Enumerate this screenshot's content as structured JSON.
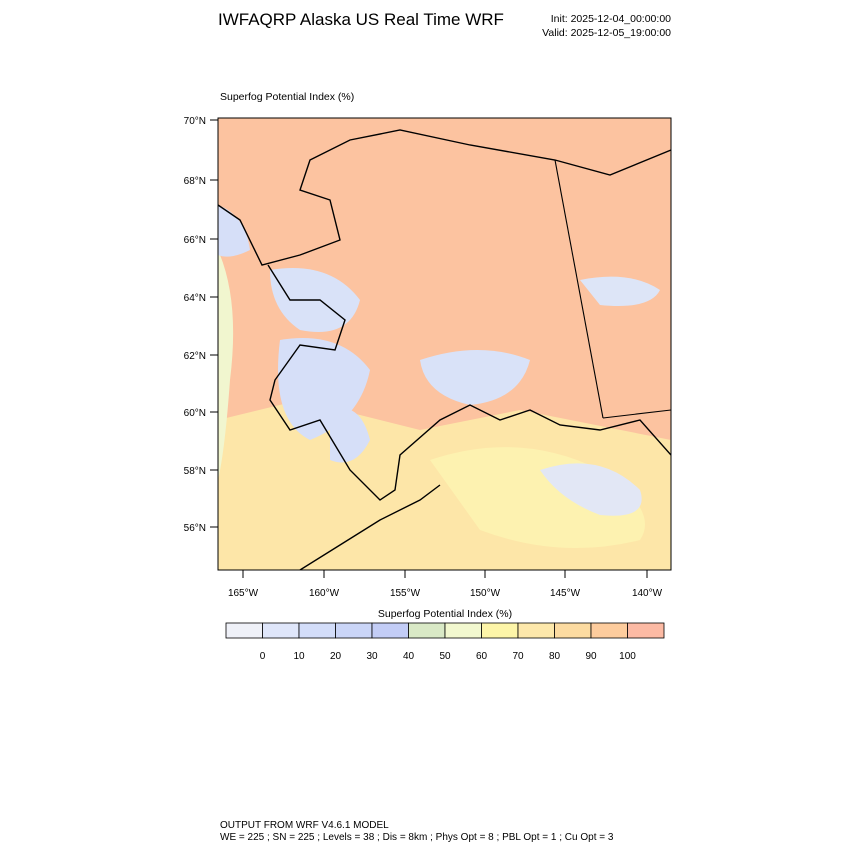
{
  "header": {
    "title": "IWFAQRP Alaska US Real Time WRF",
    "init": "Init: 2025-12-04_00:00:00",
    "valid": "Valid: 2025-12-05_19:00:00"
  },
  "map": {
    "label": "Superfog Potential Index   (%)",
    "lat_labels": [
      "70°N",
      "68°N",
      "66°N",
      "64°N",
      "62°N",
      "60°N",
      "58°N",
      "56°N"
    ],
    "lon_labels": [
      "165°W",
      "160°W",
      "155°W",
      "150°W",
      "145°W",
      "140°W"
    ]
  },
  "colorbar": {
    "title": "Superfog Potential Index  (%)",
    "colors": [
      "#eff1f8",
      "#dfe6fa",
      "#d3ddf9",
      "#cad5f7",
      "#c3cdf6",
      "#d9e9c6",
      "#f2f8cf",
      "#fdf5a8",
      "#fde8ab",
      "#fcdba1",
      "#fdcc9d",
      "#fcbaa4"
    ],
    "labels": [
      0,
      10,
      20,
      30,
      40,
      50,
      60,
      70,
      80,
      90,
      100
    ]
  },
  "footer": {
    "line1": "OUTPUT FROM WRF V4.6.1 MODEL",
    "line2": "WE = 225 ; SN = 225 ; Levels = 38 ; Dis = 8km ; Phys Opt = 8 ; PBL Opt = 1 ; Cu Opt = 3"
  }
}
